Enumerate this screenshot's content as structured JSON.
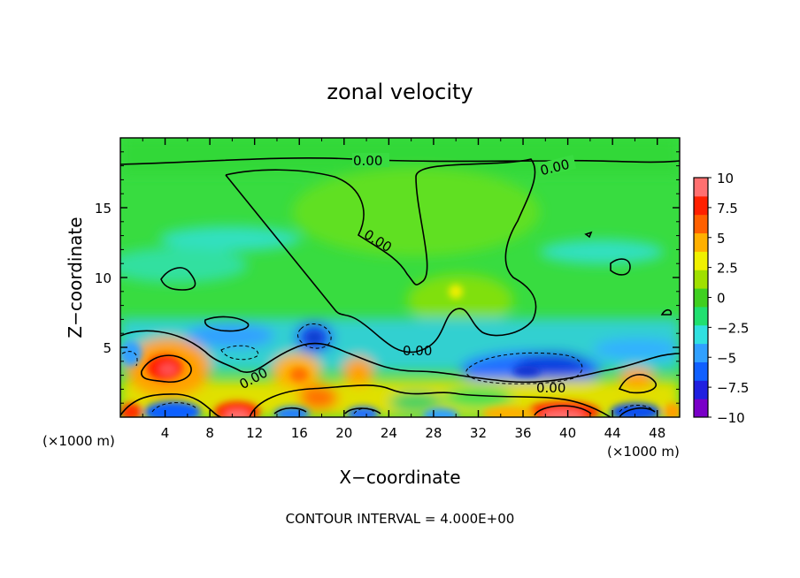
{
  "chart_data": {
    "type": "heatmap",
    "title": "zonal velocity",
    "xlabel": "X−coordinate",
    "ylabel": "Z−coordinate",
    "x_unit_left": "(×1000 m)",
    "x_unit_right": "(×1000 m)",
    "footer": "CONTOUR INTERVAL = 4.000E+00",
    "xlim": [
      0,
      50
    ],
    "ylim": [
      0,
      20
    ],
    "x_ticks": [
      4,
      8,
      12,
      16,
      20,
      24,
      28,
      32,
      36,
      40,
      44,
      48
    ],
    "y_ticks": [
      5,
      10,
      15
    ],
    "colorbar": {
      "range": [
        -10,
        10
      ],
      "ticks": [
        "10",
        "7.5",
        "5",
        "2.5",
        "0",
        "−2.5",
        "−5",
        "−7.5",
        "−10"
      ],
      "colors": [
        "#7a00c8",
        "#2020e0",
        "#1060ff",
        "#30a0ff",
        "#30e0e0",
        "#20e070",
        "#40d020",
        "#a0e000",
        "#f0f000",
        "#ffb000",
        "#ff6000",
        "#ff2000",
        "#ff7070"
      ]
    },
    "contour_labels": [
      "0.00",
      "0.00",
      "0.00",
      "0.00",
      "0.00",
      "0.00"
    ],
    "features": [
      {
        "x": 4.5,
        "z": 3.5,
        "value": 10
      },
      {
        "x": 10.5,
        "z": 0.3,
        "value": 10
      },
      {
        "x": 39,
        "z": 0.3,
        "value": 10
      },
      {
        "x": 5,
        "z": 0.5,
        "value": -6
      },
      {
        "x": 17.5,
        "z": 5.5,
        "value": -6
      },
      {
        "x": 35,
        "z": 3,
        "value": -6
      },
      {
        "x": 46,
        "z": 0.3,
        "value": -6
      },
      {
        "x": 30,
        "z": 9,
        "value": 4
      },
      {
        "x": 46,
        "z": 2.5,
        "value": 5
      }
    ]
  }
}
